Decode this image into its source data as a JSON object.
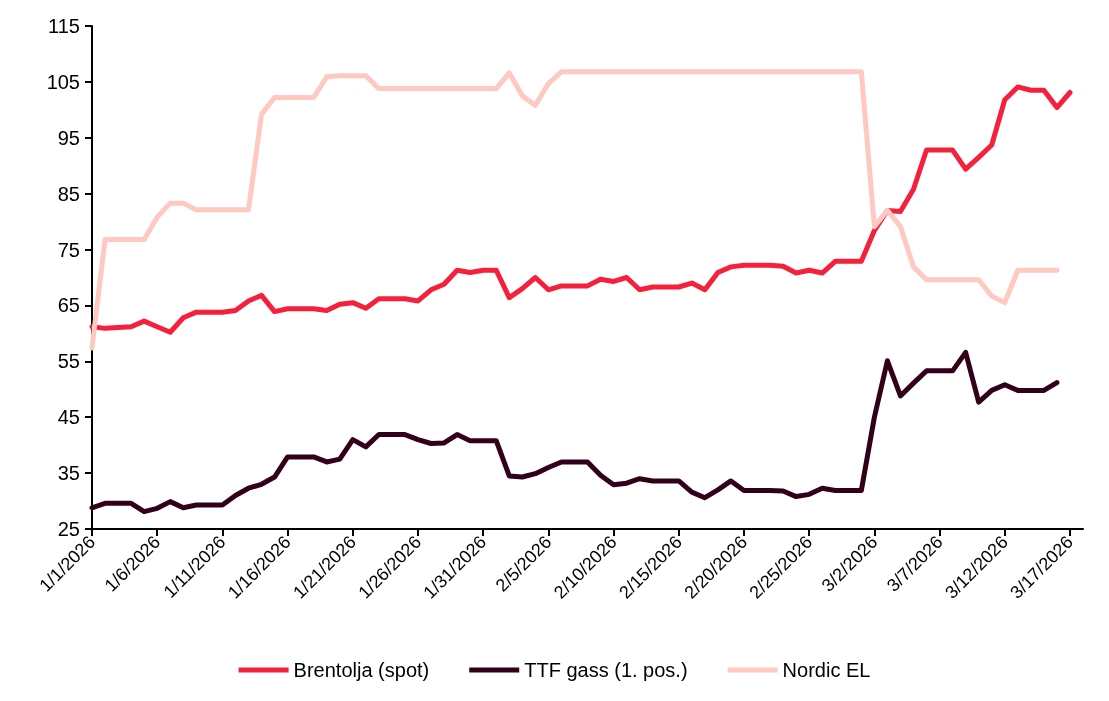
{
  "chart_data": {
    "type": "line",
    "legend": "bottom",
    "grid": false,
    "marker": "none",
    "line_style": "solid",
    "xlim": [
      "2026-01-01",
      "2026-03-18"
    ],
    "xticks": [
      {
        "value": "2026-01-01",
        "label": "1/1/2026"
      },
      {
        "value": "2026-01-06",
        "label": "1/6/2026"
      },
      {
        "value": "2026-01-11",
        "label": "1/11/2026"
      },
      {
        "value": "2026-01-16",
        "label": "1/16/2026"
      },
      {
        "value": "2026-01-21",
        "label": "1/21/2026"
      },
      {
        "value": "2026-01-26",
        "label": "1/26/2026"
      },
      {
        "value": "2026-01-31",
        "label": "1/31/2026"
      },
      {
        "value": "2026-02-05",
        "label": "2/5/2026"
      },
      {
        "value": "2026-02-10",
        "label": "2/10/2026"
      },
      {
        "value": "2026-02-15",
        "label": "2/15/2026"
      },
      {
        "value": "2026-02-20",
        "label": "2/20/2026"
      },
      {
        "value": "2026-02-25",
        "label": "2/25/2026"
      },
      {
        "value": "2026-03-02",
        "label": "3/2/2026"
      },
      {
        "value": "2026-03-07",
        "label": "3/7/2026"
      },
      {
        "value": "2026-03-12",
        "label": "3/12/2026"
      },
      {
        "value": "2026-03-17",
        "label": "3/17/2026"
      }
    ],
    "ylim": [
      25,
      115
    ],
    "yticks": [
      25,
      35,
      45,
      55,
      65,
      75,
      85,
      95,
      105,
      115
    ],
    "series": [
      {
        "name": "Brentolja (spot)",
        "color": "#f5203a",
        "x": [
          "2026-01-01",
          "2026-01-02",
          "2026-01-04",
          "2026-01-05",
          "2026-01-06",
          "2026-01-07",
          "2026-01-08",
          "2026-01-09",
          "2026-01-11",
          "2026-01-12",
          "2026-01-13",
          "2026-01-14",
          "2026-01-15",
          "2026-01-16",
          "2026-01-18",
          "2026-01-19",
          "2026-01-20",
          "2026-01-21",
          "2026-01-22",
          "2026-01-23",
          "2026-01-25",
          "2026-01-26",
          "2026-01-27",
          "2026-01-28",
          "2026-01-29",
          "2026-01-30",
          "2026-01-31",
          "2026-02-01",
          "2026-02-02",
          "2026-02-03",
          "2026-02-04",
          "2026-02-05",
          "2026-02-06",
          "2026-02-08",
          "2026-02-09",
          "2026-02-10",
          "2026-02-11",
          "2026-02-12",
          "2026-02-13",
          "2026-02-15",
          "2026-02-16",
          "2026-02-17",
          "2026-02-18",
          "2026-02-19",
          "2026-02-20",
          "2026-02-22",
          "2026-02-23",
          "2026-02-24",
          "2026-02-25",
          "2026-02-26",
          "2026-02-27",
          "2026-03-01",
          "2026-03-02",
          "2026-03-03",
          "2026-03-04",
          "2026-03-05",
          "2026-03-06",
          "2026-03-08",
          "2026-03-09",
          "2026-03-10",
          "2026-03-11",
          "2026-03-12",
          "2026-03-13",
          "2026-03-14",
          "2026-03-15",
          "2026-03-16",
          "2026-03-17"
        ],
        "values": [
          61.2,
          60.9,
          61.2,
          62.2,
          61.2,
          60.2,
          62.8,
          63.8,
          63.8,
          64.1,
          65.8,
          66.8,
          63.9,
          64.4,
          64.4,
          64.1,
          65.2,
          65.5,
          64.5,
          66.2,
          66.2,
          65.8,
          67.8,
          68.8,
          71.3,
          70.9,
          71.3,
          71.3,
          66.4,
          68,
          70,
          67.8,
          68.5,
          68.5,
          69.7,
          69.3,
          70,
          67.8,
          68.3,
          68.3,
          69,
          67.8,
          70.9,
          71.9,
          72.2,
          72.2,
          72,
          70.8,
          71.3,
          70.8,
          72.9,
          72.9,
          78.4,
          82,
          81.8,
          85.8,
          92.8,
          92.8,
          89.4,
          91.5,
          93.7,
          101.8,
          104.1,
          103.5,
          103.5,
          100.4,
          103.1
        ]
      },
      {
        "name": "TTF gass (1. pos.)",
        "color": "#33001a",
        "x": [
          "2026-01-01",
          "2026-01-02",
          "2026-01-04",
          "2026-01-05",
          "2026-01-06",
          "2026-01-07",
          "2026-01-08",
          "2026-01-09",
          "2026-01-11",
          "2026-01-12",
          "2026-01-13",
          "2026-01-14",
          "2026-01-15",
          "2026-01-16",
          "2026-01-18",
          "2026-01-19",
          "2026-01-20",
          "2026-01-21",
          "2026-01-22",
          "2026-01-23",
          "2026-01-25",
          "2026-01-26",
          "2026-01-27",
          "2026-01-28",
          "2026-01-29",
          "2026-01-30",
          "2026-02-01",
          "2026-02-02",
          "2026-02-03",
          "2026-02-04",
          "2026-02-05",
          "2026-02-06",
          "2026-02-08",
          "2026-02-09",
          "2026-02-10",
          "2026-02-11",
          "2026-02-12",
          "2026-02-13",
          "2026-02-15",
          "2026-02-16",
          "2026-02-17",
          "2026-02-18",
          "2026-02-19",
          "2026-02-20",
          "2026-02-22",
          "2026-02-23",
          "2026-02-24",
          "2026-02-25",
          "2026-02-26",
          "2026-02-27",
          "2026-03-01",
          "2026-03-02",
          "2026-03-03",
          "2026-03-04",
          "2026-03-05",
          "2026-03-06",
          "2026-03-08",
          "2026-03-09",
          "2026-03-10",
          "2026-03-11",
          "2026-03-12",
          "2026-03-13",
          "2026-03-15",
          "2026-03-16"
        ],
        "values": [
          28.8,
          29.6,
          29.6,
          28.1,
          28.7,
          29.9,
          28.8,
          29.3,
          29.3,
          31,
          32.3,
          33,
          34.3,
          37.9,
          37.9,
          37,
          37.5,
          41,
          39.7,
          41.9,
          41.9,
          41,
          40.3,
          40.4,
          41.9,
          40.8,
          40.8,
          34.5,
          34.3,
          34.9,
          36,
          37,
          37,
          34.6,
          32.9,
          33.2,
          34,
          33.6,
          33.6,
          31.6,
          30.6,
          32,
          33.6,
          31.9,
          31.9,
          31.8,
          30.8,
          31.2,
          32.3,
          31.9,
          31.9,
          45,
          55.1,
          48.8,
          51.1,
          53.3,
          53.3,
          56.6,
          47.7,
          49.8,
          50.8,
          49.8,
          49.8,
          51.2
        ]
      },
      {
        "name": "Nordic EL",
        "color": "#ffc8c0",
        "x": [
          "2026-01-01",
          "2026-01-02",
          "2026-01-05",
          "2026-01-06",
          "2026-01-07",
          "2026-01-08",
          "2026-01-09",
          "2026-01-13",
          "2026-01-14",
          "2026-01-15",
          "2026-01-18",
          "2026-01-19",
          "2026-01-20",
          "2026-01-22",
          "2026-01-23",
          "2026-02-01",
          "2026-02-02",
          "2026-02-03",
          "2026-02-04",
          "2026-02-05",
          "2026-02-06",
          "2026-03-01",
          "2026-03-02",
          "2026-03-03",
          "2026-03-04",
          "2026-03-05",
          "2026-03-06",
          "2026-03-10",
          "2026-03-11",
          "2026-03-12",
          "2026-03-13",
          "2026-03-16"
        ],
        "values": [
          57.4,
          76.8,
          76.8,
          80.8,
          83.3,
          83.3,
          82.1,
          82.1,
          99.2,
          102.2,
          102.2,
          105.9,
          106.1,
          106.1,
          103.8,
          103.8,
          106.6,
          102.5,
          100.8,
          104.7,
          106.8,
          106.8,
          79.1,
          82,
          79.1,
          71.9,
          69.6,
          69.6,
          66.7,
          65.5,
          71.3,
          71.3
        ]
      }
    ]
  }
}
